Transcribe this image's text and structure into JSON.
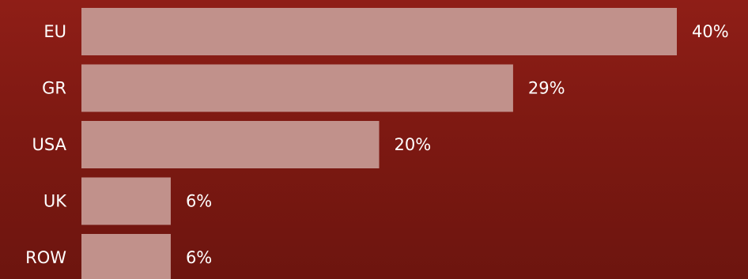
{
  "chart_data": {
    "type": "bar",
    "orientation": "horizontal",
    "categories": [
      "EU",
      "GR",
      "USA",
      "UK",
      "ROW"
    ],
    "values": [
      40,
      29,
      20,
      6,
      6
    ],
    "value_labels": [
      "40%",
      "29%",
      "20%",
      "6%",
      "6%"
    ],
    "unit": "%",
    "title": "",
    "xlabel": "",
    "ylabel": "",
    "xlim": [
      0,
      40
    ],
    "grid": false,
    "legend": "none",
    "colors": {
      "bar": "#c1918b",
      "background_top": "#8f1e17",
      "background_bottom": "#6d150f",
      "text": "#ffffff"
    }
  }
}
